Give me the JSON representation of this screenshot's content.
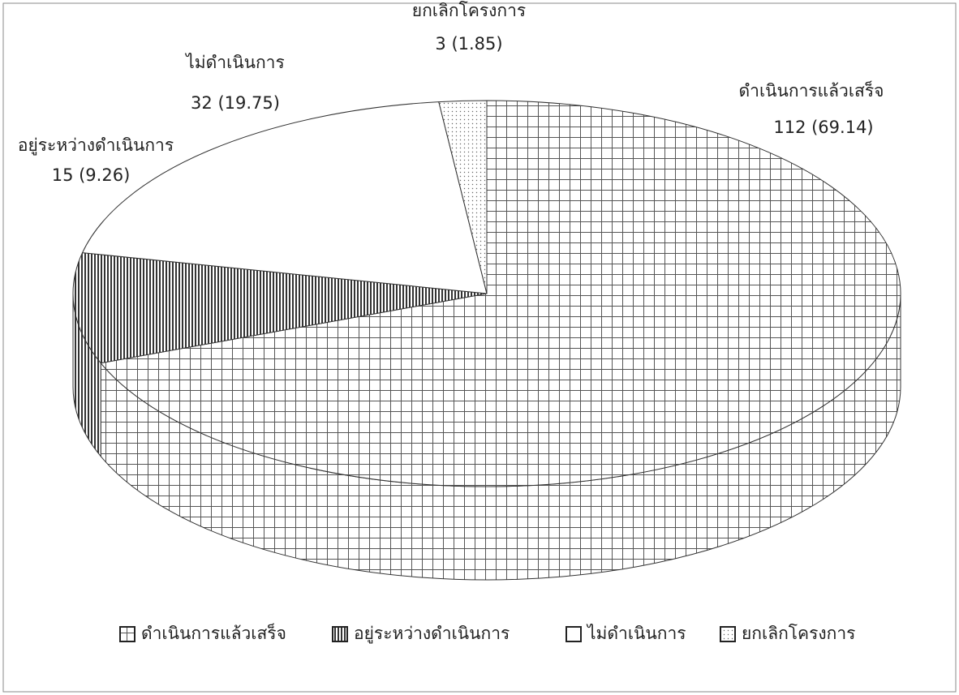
{
  "chart_data": {
    "type": "pie",
    "categories": [
      "ดำเนินการแล้วเสร็จ",
      "อยู่ระหว่างดำเนินการ",
      "ไม่ดำเนินการ",
      "ยกเลิกโครงการ"
    ],
    "values": [
      112,
      15,
      32,
      3
    ],
    "value_labels": [
      "112 (69.14)",
      "15 (9.26)",
      "32 (19.75)",
      "3 (1.85)"
    ],
    "patterns": [
      "grid",
      "vertical-stripes",
      "none",
      "dots"
    ],
    "legend": "bottom"
  }
}
